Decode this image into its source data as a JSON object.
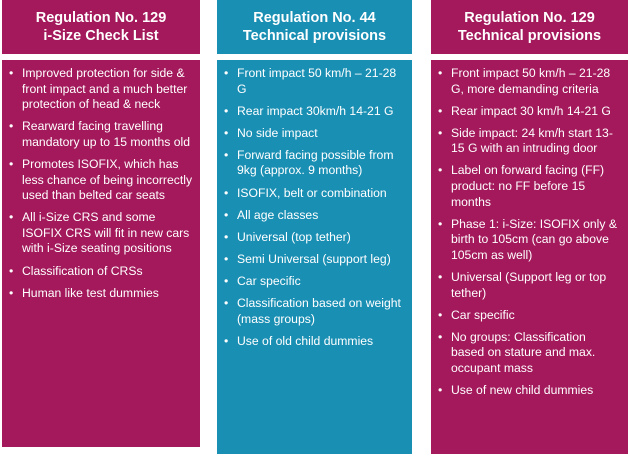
{
  "columns": [
    {
      "title_line1": "Regulation No. 129",
      "title_line2": "i-Size Check List",
      "items": [
        "Improved protection for side & front impact and a much better protection of head & neck",
        "Rearward facing travelling mandatory up to 15 months old",
        "Promotes ISOFIX, which has less chance of being incorrectly used than belted car seats",
        "All i-Size CRS and some ISOFIX CRS will fit in new cars with i-Size seating positions",
        "Classification of CRSs",
        "Human like test dummies"
      ],
      "color": "#a3195b"
    },
    {
      "title_line1": "Regulation No. 44",
      "title_line2": "Technical provisions",
      "items": [
        "Front impact 50 km/h – 21-28 G",
        "Rear impact 30km/h 14-21 G",
        "No side impact",
        "Forward facing possible from 9kg (approx. 9 months)",
        "ISOFIX, belt or combination",
        "All age classes",
        "Universal (top tether)",
        "Semi Universal (support leg)",
        "Car specific",
        "Classification based on weight (mass groups)",
        "Use of old child dummies"
      ],
      "color": "#1a8fb4"
    },
    {
      "title_line1": "Regulation No. 129",
      "title_line2": "Technical provisions",
      "items": [
        "Front impact 50 km/h – 21-28 G, more demanding criteria",
        "Rear impact 30 km/h 14-21 G",
        "Side impact: 24 km/h start 13-15 G with an intruding door",
        "Label on forward facing (FF) product: no FF before 15 months",
        "Phase 1: i-Size: ISOFIX only & birth to 105cm (can go above 105cm as well)",
        "Universal (Support leg or top tether)",
        "Car specific",
        "No groups: Classification based on stature and max. occupant mass",
        "Use of new child dummies"
      ],
      "color": "#a3195b"
    }
  ]
}
